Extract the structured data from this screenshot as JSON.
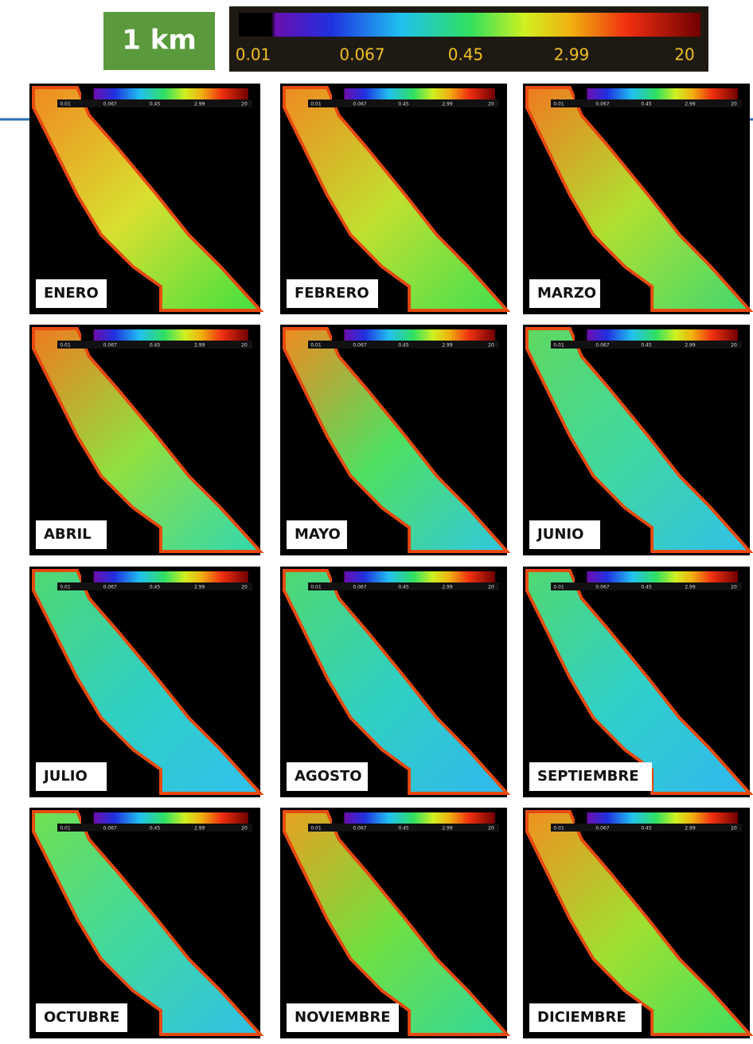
{
  "badge": "1 km",
  "colorbar": {
    "labels": [
      "0.01",
      "0.067",
      "0.45",
      "2.99",
      "20"
    ]
  },
  "panels": [
    {
      "label": "ENERO"
    },
    {
      "label": "FEBRERO"
    },
    {
      "label": "MARZO"
    },
    {
      "label": "ABRIL"
    },
    {
      "label": "MAYO"
    },
    {
      "label": "JUNIO"
    },
    {
      "label": "JULIO"
    },
    {
      "label": "AGOSTO"
    },
    {
      "label": "SEPTIEMBRE"
    },
    {
      "label": "OCTUBRE"
    },
    {
      "label": "NOVIEMBRE"
    },
    {
      "label": "DICIEMBRE"
    }
  ]
}
